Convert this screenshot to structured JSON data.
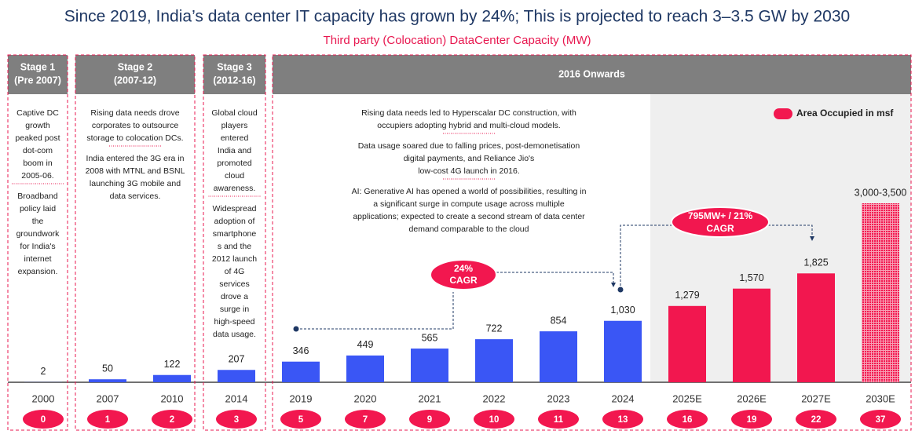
{
  "chart_data": {
    "type": "bar",
    "title": "Since 2019, India’s data center IT capacity has grown by 24%; This is projected to reach 3–3.5 GW by 2030",
    "subtitle": "Third party (Colocation) DataCenter Capacity (MW)",
    "categories": [
      "2000",
      "2007",
      "2010",
      "2014",
      "2019",
      "2020",
      "2021",
      "2022",
      "2023",
      "2024",
      "2025E",
      "2026E",
      "2027E",
      "2030E"
    ],
    "values": [
      2,
      50,
      122,
      207,
      346,
      449,
      565,
      722,
      854,
      1030,
      1279,
      1570,
      1825,
      3000
    ],
    "value_labels": [
      "2",
      "50",
      "122",
      "207",
      "346",
      "449",
      "565",
      "722",
      "854",
      "1,030",
      "1,279",
      "1,570",
      "1,825",
      "3,000-3,500"
    ],
    "colors": [
      "#3a56f5",
      "#3a56f5",
      "#3a56f5",
      "#3a56f5",
      "#3a56f5",
      "#3a56f5",
      "#3a56f5",
      "#3a56f5",
      "#3a56f5",
      "#3a56f5",
      "#f2174f",
      "#f2174f",
      "#f2174f",
      "#f2174f"
    ],
    "patterns": [
      "solid",
      "solid",
      "solid",
      "solid",
      "solid",
      "solid",
      "solid",
      "solid",
      "solid",
      "solid",
      "solid",
      "solid",
      "solid",
      "dotted"
    ],
    "area_occupied": {
      "name": "Area Occupied in msf",
      "color": "#f2174f",
      "values": [
        0,
        1,
        2,
        3,
        5,
        7,
        9,
        10,
        11,
        13,
        16,
        19,
        22,
        37
      ]
    },
    "annotations": [
      [
        "24%",
        "CAGR"
      ],
      [
        "795MW+ / 21%",
        "CAGR"
      ]
    ],
    "stages": [
      {
        "title": [
          "Stage 1",
          "(Pre 2007)"
        ],
        "notes": [
          [
            "Captive DC",
            "growth",
            "peaked post",
            "dot-com",
            "boom in",
            "2005-06."
          ],
          [
            "Broadband",
            "policy laid",
            "the",
            "groundwork",
            "for India's",
            "internet",
            "expansion."
          ]
        ]
      },
      {
        "title": [
          "Stage 2",
          "(2007-12)"
        ],
        "notes": [
          [
            "Rising data needs drove",
            "corporates to outsource",
            "storage to colocation DCs."
          ],
          [
            "India entered the 3G era in",
            "2008 with MTNL and BSNL",
            "launching 3G mobile and",
            "data services."
          ]
        ]
      },
      {
        "title": [
          "Stage 3",
          "(2012-16)"
        ],
        "notes": [
          [
            "Global cloud",
            "players",
            "entered",
            "India and",
            "promoted",
            "cloud",
            "awareness."
          ],
          [
            "Widespread",
            "adoption of",
            "smartphone",
            "s and the",
            "2012 launch",
            "of 4G",
            "services",
            "drove a",
            "surge in",
            "high-speed",
            "data usage."
          ]
        ]
      },
      {
        "title": [
          "2016 Onwards"
        ],
        "notes": [
          [
            "Rising data needs led to Hyperscalar DC construction, with",
            "occupiers adopting hybrid and multi-cloud models."
          ],
          [
            "Data usage soared due to falling prices, post-demonetisation",
            "digital payments, and Reliance Jio's",
            "low-cost 4G launch in 2016."
          ],
          [
            "AI: Generative AI has opened a world of possibilities, resulting in",
            "a significant surge in compute usage across multiple",
            "applications; expected to create a second stream of data center",
            "demand comparable to the cloud"
          ]
        ]
      }
    ]
  }
}
